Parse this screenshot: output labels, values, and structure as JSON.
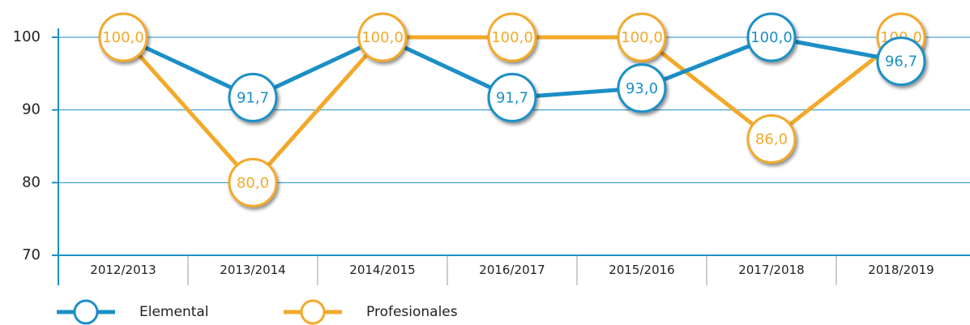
{
  "chart_data": {
    "type": "line",
    "categories": [
      "2012/2013",
      "2013/2014",
      "2014/2015",
      "2016/2017",
      "2015/2016",
      "2017/2018",
      "2018/2019"
    ],
    "series": [
      {
        "name": "Elemental",
        "color": "#1b8fc6",
        "values": [
          100,
          91.7,
          100,
          91.7,
          93.0,
          100,
          96.7
        ],
        "value_labels": [
          null,
          "91,7",
          null,
          "91,7",
          "93,0",
          "100,0",
          "96,7"
        ]
      },
      {
        "name": "Profesionales",
        "color": "#f2a92b",
        "values": [
          100,
          80.0,
          100,
          100,
          100,
          86.0,
          100
        ],
        "value_labels": [
          "100,0",
          "80,0",
          "100,0",
          "100,0",
          "100,0",
          "86,0",
          "100,0"
        ]
      }
    ],
    "ylim": [
      70,
      100
    ],
    "yticks": [
      70,
      80,
      90,
      100
    ],
    "grid": true,
    "legend": "bottom"
  }
}
